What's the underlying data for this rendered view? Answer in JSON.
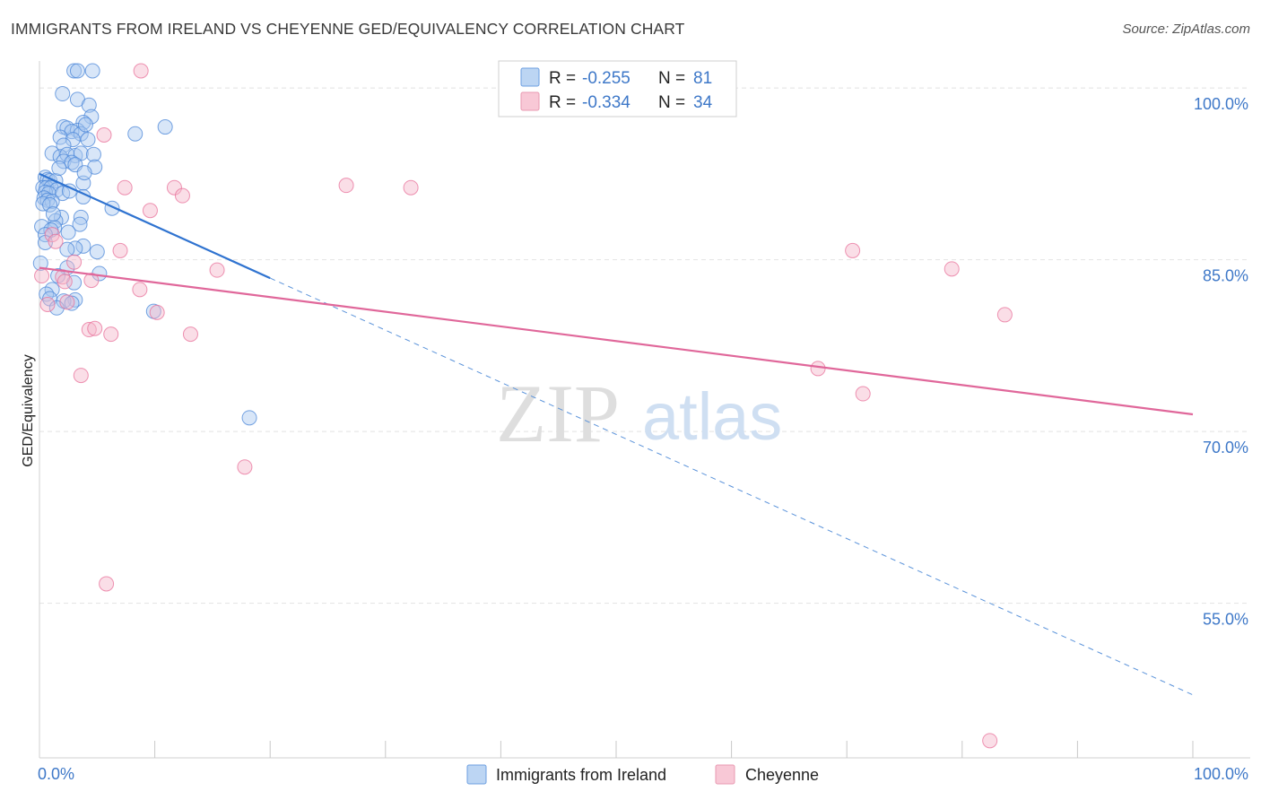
{
  "title": "IMMIGRANTS FROM IRELAND VS CHEYENNE GED/EQUIVALENCY CORRELATION CHART",
  "source": "Source: ZipAtlas.com",
  "watermark": {
    "zip": "ZIP",
    "atlas": "atlas"
  },
  "colors": {
    "blue": "#4a86d8",
    "blue_fill": "#a9c8f0",
    "pink": "#e8709a",
    "pink_fill": "#f5b6c9",
    "axis_text": "#3e78c8"
  },
  "chart_data": {
    "type": "scatter",
    "title": "IMMIGRANTS FROM IRELAND VS CHEYENNE GED/EQUIVALENCY CORRELATION CHART",
    "xlabel": "",
    "ylabel": "GED/Equivalency",
    "xlim": [
      0,
      100
    ],
    "ylim": [
      41.5,
      101.5
    ],
    "x_tick_labels": [
      {
        "value": 0,
        "label": "0.0%"
      },
      {
        "value": 100,
        "label": "100.0%"
      }
    ],
    "y_tick_labels": [
      {
        "value": 100,
        "label": "100.0%"
      },
      {
        "value": 85,
        "label": "85.0%"
      },
      {
        "value": 70,
        "label": "70.0%"
      },
      {
        "value": 55,
        "label": "55.0%"
      }
    ],
    "grid": true,
    "legend": {
      "placement": "top-center",
      "entries": [
        {
          "r_label": "R =",
          "r_value": "-0.255",
          "n_label": "N =",
          "n_value": "81"
        },
        {
          "r_label": "R =",
          "r_value": "-0.334",
          "n_label": "N =",
          "n_value": "34"
        }
      ]
    },
    "series": [
      {
        "name": "Immigrants from Ireland",
        "color": "#4a86d8",
        "trend": {
          "x0": 0,
          "y0": 92.5,
          "x1": 100,
          "y1": 47.0,
          "solid_until": 20
        },
        "points": [
          [
            3.0,
            101.5
          ],
          [
            3.3,
            101.5
          ],
          [
            4.6,
            101.5
          ],
          [
            2.0,
            99.5
          ],
          [
            3.3,
            99.0
          ],
          [
            4.3,
            98.5
          ],
          [
            4.5,
            97.5
          ],
          [
            3.8,
            97.0
          ],
          [
            2.1,
            96.6
          ],
          [
            2.4,
            96.5
          ],
          [
            3.3,
            96.3
          ],
          [
            2.8,
            96.2
          ],
          [
            3.6,
            96.0
          ],
          [
            8.3,
            96.0
          ],
          [
            1.8,
            95.7
          ],
          [
            2.9,
            95.5
          ],
          [
            4.2,
            95.5
          ],
          [
            2.1,
            95.0
          ],
          [
            1.1,
            94.3
          ],
          [
            1.8,
            94.0
          ],
          [
            2.4,
            94.2
          ],
          [
            3.1,
            94.1
          ],
          [
            3.6,
            94.3
          ],
          [
            4.7,
            94.2
          ],
          [
            2.1,
            93.6
          ],
          [
            2.8,
            93.5
          ],
          [
            3.1,
            93.3
          ],
          [
            4.8,
            93.1
          ],
          [
            0.5,
            92.2
          ],
          [
            0.7,
            92.0
          ],
          [
            0.9,
            91.9
          ],
          [
            1.4,
            91.9
          ],
          [
            3.8,
            91.7
          ],
          [
            0.3,
            91.3
          ],
          [
            0.6,
            91.3
          ],
          [
            1.0,
            91.3
          ],
          [
            1.5,
            91.1
          ],
          [
            0.5,
            90.9
          ],
          [
            0.8,
            90.8
          ],
          [
            2.0,
            90.8
          ],
          [
            3.8,
            90.5
          ],
          [
            0.4,
            90.4
          ],
          [
            0.7,
            90.2
          ],
          [
            1.1,
            90.1
          ],
          [
            0.3,
            89.9
          ],
          [
            0.9,
            89.8
          ],
          [
            6.3,
            89.5
          ],
          [
            1.9,
            88.7
          ],
          [
            3.6,
            88.7
          ],
          [
            1.4,
            88.4
          ],
          [
            3.5,
            88.1
          ],
          [
            0.2,
            87.9
          ],
          [
            1.3,
            87.8
          ],
          [
            1.0,
            87.6
          ],
          [
            2.5,
            87.4
          ],
          [
            0.5,
            87.2
          ],
          [
            3.8,
            86.2
          ],
          [
            3.1,
            86.0
          ],
          [
            2.4,
            85.9
          ],
          [
            5.0,
            85.7
          ],
          [
            0.1,
            84.7
          ],
          [
            2.4,
            84.3
          ],
          [
            5.2,
            83.8
          ],
          [
            1.6,
            83.6
          ],
          [
            3.0,
            83.0
          ],
          [
            1.1,
            82.4
          ],
          [
            0.6,
            82.0
          ],
          [
            0.9,
            81.6
          ],
          [
            3.1,
            81.5
          ],
          [
            2.1,
            81.4
          ],
          [
            2.8,
            81.2
          ],
          [
            1.5,
            80.8
          ],
          [
            9.9,
            80.5
          ],
          [
            18.2,
            71.2
          ],
          [
            10.9,
            96.6
          ],
          [
            1.2,
            89.0
          ],
          [
            2.6,
            91.0
          ],
          [
            3.9,
            92.6
          ],
          [
            1.7,
            93.0
          ],
          [
            4.0,
            96.8
          ],
          [
            0.5,
            86.5
          ]
        ]
      },
      {
        "name": "Cheyenne",
        "color": "#e8709a",
        "trend": {
          "x0": 0,
          "y0": 84.3,
          "x1": 100,
          "y1": 71.5
        },
        "points": [
          [
            8.8,
            101.5
          ],
          [
            5.6,
            95.9
          ],
          [
            7.4,
            91.3
          ],
          [
            11.7,
            91.3
          ],
          [
            12.4,
            90.6
          ],
          [
            26.6,
            91.5
          ],
          [
            32.2,
            91.3
          ],
          [
            9.6,
            89.3
          ],
          [
            1.1,
            87.2
          ],
          [
            1.4,
            86.6
          ],
          [
            7.0,
            85.8
          ],
          [
            3.0,
            84.8
          ],
          [
            15.4,
            84.1
          ],
          [
            0.2,
            83.6
          ],
          [
            2.0,
            83.5
          ],
          [
            4.5,
            83.2
          ],
          [
            2.2,
            83.1
          ],
          [
            8.7,
            82.4
          ],
          [
            0.7,
            81.1
          ],
          [
            2.4,
            81.3
          ],
          [
            10.2,
            80.4
          ],
          [
            4.3,
            78.9
          ],
          [
            4.8,
            79.0
          ],
          [
            6.2,
            78.5
          ],
          [
            13.1,
            78.5
          ],
          [
            3.6,
            74.9
          ],
          [
            17.8,
            66.9
          ],
          [
            5.8,
            56.7
          ],
          [
            70.5,
            85.8
          ],
          [
            79.1,
            84.2
          ],
          [
            83.7,
            80.2
          ],
          [
            67.5,
            75.5
          ],
          [
            71.4,
            73.3
          ],
          [
            82.4,
            43.0
          ]
        ]
      }
    ]
  }
}
